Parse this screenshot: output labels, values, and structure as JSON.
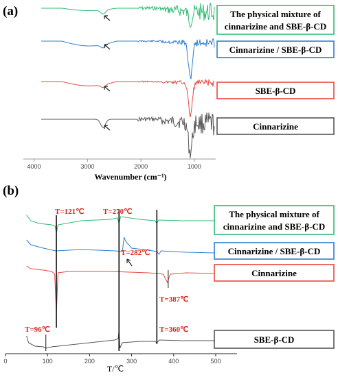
{
  "colors": {
    "green": "#2dbb73",
    "blue": "#2a7fd4",
    "red": "#e8473f",
    "gray": "#555555",
    "annotation": "#d9261c"
  },
  "chart_data": [
    {
      "type": "line",
      "panel_label": "(a)",
      "xlabel": "Wavenumber (cm⁻¹)",
      "xlim": [
        4200,
        600
      ],
      "x_ticks": [
        "4000",
        "3000",
        "2000",
        "1000"
      ],
      "series": [
        {
          "name": "The physical mixture of cinnarizine and SBE-β-CD",
          "name_lines": [
            "The physical mixture of",
            "cinnarizine and SBE-β-CD"
          ],
          "color": "green"
        },
        {
          "name": "Cinnarizine / SBE-β-CD",
          "name_lines": [
            "Cinnarizine / SBE-β-CD"
          ],
          "color": "blue"
        },
        {
          "name": "SBE-β-CD",
          "name_lines": [
            "SBE-β-CD"
          ],
          "color": "red"
        },
        {
          "name": "Cinnarizine",
          "name_lines": [
            "Cinnarizine"
          ],
          "color": "gray"
        }
      ]
    },
    {
      "type": "line",
      "panel_label": "(b)",
      "xlabel": "T/℃",
      "xlim": [
        0,
        500
      ],
      "x_ticks": [
        "0",
        "100",
        "200",
        "300",
        "400",
        "500"
      ],
      "series": [
        {
          "name": "The physical mixture of cinnarizine and SBE-β-CD",
          "name_lines": [
            "The physical mixture of",
            "cinnarizine and SBE-β-CD"
          ],
          "color": "green"
        },
        {
          "name": "Cinnarizine / SBE-β-CD",
          "name_lines": [
            "Cinnarizine / SBE-β-CD"
          ],
          "color": "blue"
        },
        {
          "name": "Cinnarizine",
          "name_lines": [
            "Cinnarizine"
          ],
          "color": "red"
        },
        {
          "name": "SBE-β-CD",
          "name_lines": [
            "SBE-β-CD"
          ],
          "color": "gray"
        }
      ],
      "annotations": [
        {
          "text": "T=121℃",
          "x": 121
        },
        {
          "text": "T=270℃",
          "x": 270
        },
        {
          "text": "T=282℃",
          "x": 282
        },
        {
          "text": "T=387℃",
          "x": 387
        },
        {
          "text": "T=96℃",
          "x": 96
        },
        {
          "text": "T=360℃",
          "x": 360
        }
      ],
      "vertical_lines": [
        121,
        270,
        360,
        96,
        387
      ]
    }
  ]
}
